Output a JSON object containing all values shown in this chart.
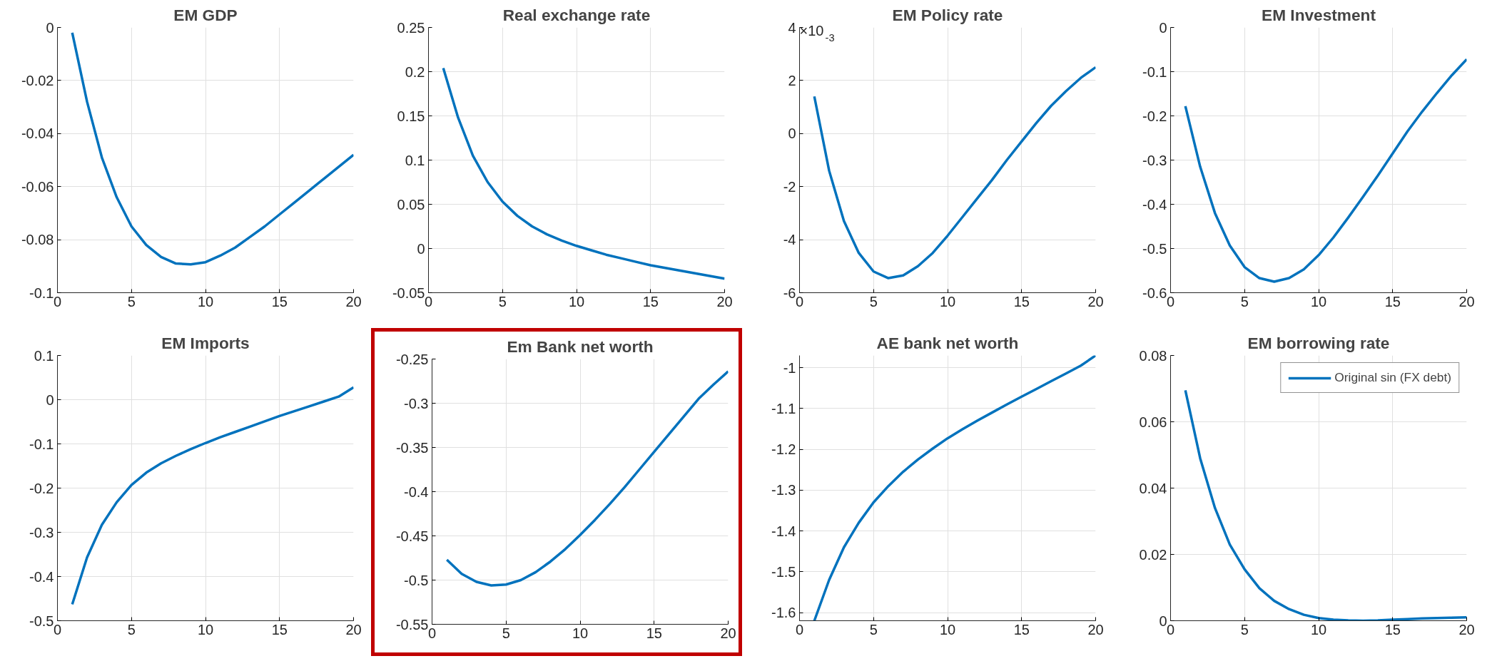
{
  "chart_data": [
    {
      "type": "line",
      "title": "EM GDP",
      "x": [
        1,
        2,
        3,
        4,
        5,
        6,
        7,
        8,
        9,
        10,
        11,
        12,
        13,
        14,
        15,
        16,
        17,
        18,
        19,
        20
      ],
      "xlim": [
        0,
        20
      ],
      "xticks": [
        0,
        5,
        10,
        15,
        20
      ],
      "ylim": [
        -0.1,
        0
      ],
      "yticks": [
        -0.1,
        -0.08,
        -0.06,
        -0.04,
        -0.02,
        0
      ],
      "grid": true,
      "series": [
        {
          "color": "#0072bd",
          "values": [
            -0.002,
            -0.028,
            -0.049,
            -0.064,
            -0.075,
            -0.082,
            -0.0865,
            -0.089,
            -0.0893,
            -0.0885,
            -0.086,
            -0.083,
            -0.079,
            -0.075,
            -0.0705,
            -0.066,
            -0.0615,
            -0.057,
            -0.0525,
            -0.048
          ]
        }
      ]
    },
    {
      "type": "line",
      "title": "Real exchange rate",
      "x": [
        1,
        2,
        3,
        4,
        5,
        6,
        7,
        8,
        9,
        10,
        11,
        12,
        13,
        14,
        15,
        16,
        17,
        18,
        19,
        20
      ],
      "xlim": [
        0,
        20
      ],
      "xticks": [
        0,
        5,
        10,
        15,
        20
      ],
      "ylim": [
        -0.05,
        0.25
      ],
      "yticks": [
        -0.05,
        0,
        0.05,
        0.1,
        0.15,
        0.2,
        0.25
      ],
      "grid": true,
      "series": [
        {
          "color": "#0072bd",
          "values": [
            0.204,
            0.148,
            0.105,
            0.075,
            0.053,
            0.037,
            0.025,
            0.016,
            0.009,
            0.003,
            -0.002,
            -0.007,
            -0.011,
            -0.015,
            -0.019,
            -0.022,
            -0.025,
            -0.028,
            -0.031,
            -0.034
          ]
        }
      ]
    },
    {
      "type": "line",
      "title": "EM Policy rate",
      "annotations": [
        "×10$^{-3}$"
      ],
      "x": [
        1,
        2,
        3,
        4,
        5,
        6,
        7,
        8,
        9,
        10,
        11,
        12,
        13,
        14,
        15,
        16,
        17,
        18,
        19,
        20
      ],
      "xlim": [
        0,
        20
      ],
      "xticks": [
        0,
        5,
        10,
        15,
        20
      ],
      "ylim": [
        -6,
        4
      ],
      "yticks": [
        -6,
        -4,
        -2,
        0,
        2,
        4
      ],
      "grid": true,
      "series": [
        {
          "color": "#0072bd",
          "values": [
            1.4,
            -1.4,
            -3.3,
            -4.5,
            -5.2,
            -5.45,
            -5.35,
            -5.0,
            -4.5,
            -3.85,
            -3.15,
            -2.45,
            -1.75,
            -1.0,
            -0.3,
            0.4,
            1.05,
            1.6,
            2.1,
            2.5
          ]
        }
      ]
    },
    {
      "type": "line",
      "title": "EM Investment",
      "x": [
        1,
        2,
        3,
        4,
        5,
        6,
        7,
        8,
        9,
        10,
        11,
        12,
        13,
        14,
        15,
        16,
        17,
        18,
        19,
        20
      ],
      "xlim": [
        0,
        20
      ],
      "xticks": [
        0,
        5,
        10,
        15,
        20
      ],
      "ylim": [
        -0.6,
        0
      ],
      "yticks": [
        -0.6,
        -0.5,
        -0.4,
        -0.3,
        -0.2,
        -0.1,
        0
      ],
      "grid": true,
      "series": [
        {
          "color": "#0072bd",
          "values": [
            -0.178,
            -0.315,
            -0.42,
            -0.493,
            -0.542,
            -0.567,
            -0.575,
            -0.567,
            -0.547,
            -0.515,
            -0.475,
            -0.43,
            -0.383,
            -0.335,
            -0.285,
            -0.235,
            -0.19,
            -0.148,
            -0.108,
            -0.072
          ]
        }
      ]
    },
    {
      "type": "line",
      "title": "EM Imports",
      "x": [
        1,
        2,
        3,
        4,
        5,
        6,
        7,
        8,
        9,
        10,
        11,
        12,
        13,
        14,
        15,
        16,
        17,
        18,
        19,
        20
      ],
      "xlim": [
        0,
        20
      ],
      "xticks": [
        0,
        5,
        10,
        15,
        20
      ],
      "ylim": [
        -0.5,
        0.1
      ],
      "yticks": [
        -0.5,
        -0.4,
        -0.3,
        -0.2,
        -0.1,
        0,
        0.1
      ],
      "grid": true,
      "series": [
        {
          "color": "#0072bd",
          "values": [
            -0.463,
            -0.357,
            -0.283,
            -0.232,
            -0.193,
            -0.165,
            -0.144,
            -0.127,
            -0.112,
            -0.098,
            -0.085,
            -0.073,
            -0.061,
            -0.049,
            -0.037,
            -0.026,
            -0.015,
            -0.004,
            0.007,
            0.028
          ]
        }
      ]
    },
    {
      "type": "line",
      "title": "Em Bank net worth",
      "x": [
        1,
        2,
        3,
        4,
        5,
        6,
        7,
        8,
        9,
        10,
        11,
        12,
        13,
        14,
        15,
        16,
        17,
        18,
        19,
        20
      ],
      "xlim": [
        0,
        20
      ],
      "xticks": [
        0,
        5,
        10,
        15,
        20
      ],
      "ylim": [
        -0.55,
        -0.25
      ],
      "yticks": [
        -0.55,
        -0.5,
        -0.45,
        -0.4,
        -0.35,
        -0.3,
        -0.25
      ],
      "grid": true,
      "series": [
        {
          "color": "#0072bd",
          "values": [
            -0.477,
            -0.493,
            -0.502,
            -0.506,
            -0.505,
            -0.5,
            -0.491,
            -0.479,
            -0.465,
            -0.449,
            -0.432,
            -0.414,
            -0.395,
            -0.375,
            -0.355,
            -0.335,
            -0.315,
            -0.295,
            -0.279,
            -0.264
          ]
        }
      ]
    },
    {
      "type": "line",
      "title": "AE bank net worth",
      "x": [
        1,
        2,
        3,
        4,
        5,
        6,
        7,
        8,
        9,
        10,
        11,
        12,
        13,
        14,
        15,
        16,
        17,
        18,
        19,
        20
      ],
      "xlim": [
        0,
        20
      ],
      "xticks": [
        0,
        5,
        10,
        15,
        20
      ],
      "ylim": [
        -1.62,
        -0.97
      ],
      "yticks": [
        -1.6,
        -1.5,
        -1.4,
        -1.3,
        -1.2,
        -1.1,
        -1
      ],
      "grid": true,
      "series": [
        {
          "color": "#0072bd",
          "values": [
            -1.62,
            -1.52,
            -1.44,
            -1.38,
            -1.33,
            -1.29,
            -1.255,
            -1.225,
            -1.198,
            -1.173,
            -1.151,
            -1.13,
            -1.11,
            -1.09,
            -1.071,
            -1.052,
            -1.033,
            -1.014,
            -0.995,
            -0.97
          ]
        }
      ]
    },
    {
      "type": "line",
      "title": "EM borrowing rate",
      "x": [
        1,
        2,
        3,
        4,
        5,
        6,
        7,
        8,
        9,
        10,
        11,
        12,
        13,
        14,
        15,
        16,
        17,
        18,
        19,
        20
      ],
      "xlim": [
        0,
        20
      ],
      "xticks": [
        0,
        5,
        10,
        15,
        20
      ],
      "ylim": [
        0,
        0.08
      ],
      "yticks": [
        0,
        0.02,
        0.04,
        0.06,
        0.08
      ],
      "grid": true,
      "legend": "top right",
      "series": [
        {
          "name": "Original sin (FX debt)",
          "color": "#0072bd",
          "values": [
            0.0695,
            0.049,
            0.034,
            0.023,
            0.0155,
            0.0098,
            0.006,
            0.0035,
            0.0018,
            0.0008,
            0.0003,
            0.0001,
            0,
            0.0001,
            0.0003,
            0.0005,
            0.0007,
            0.0008,
            0.0009,
            0.001
          ]
        }
      ]
    }
  ]
}
